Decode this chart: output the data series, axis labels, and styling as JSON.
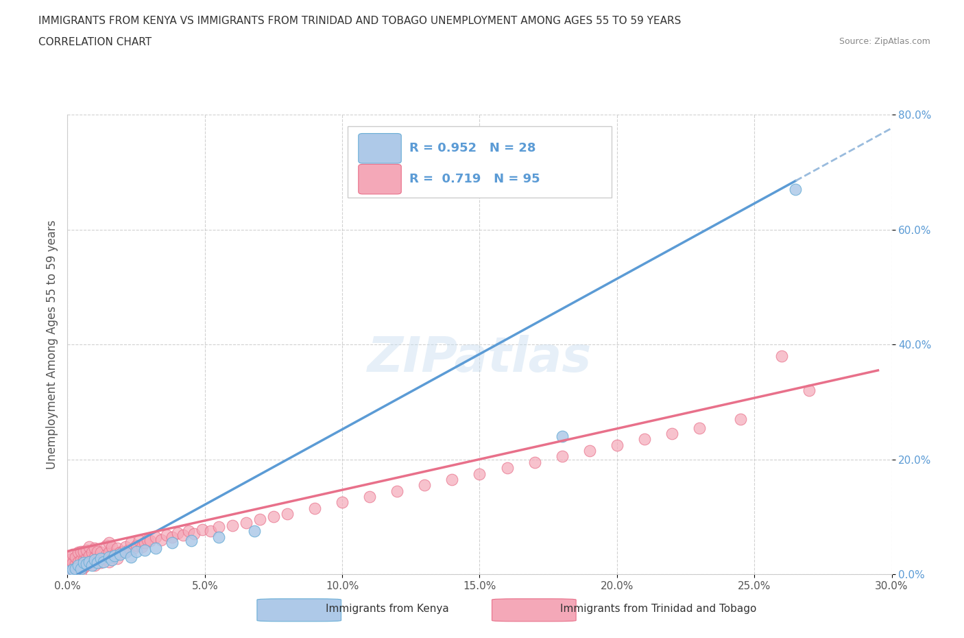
{
  "title_line1": "IMMIGRANTS FROM KENYA VS IMMIGRANTS FROM TRINIDAD AND TOBAGO UNEMPLOYMENT AMONG AGES 55 TO 59 YEARS",
  "title_line2": "CORRELATION CHART",
  "source_text": "Source: ZipAtlas.com",
  "ylabel": "Unemployment Among Ages 55 to 59 years",
  "xlim": [
    0.0,
    0.3
  ],
  "ylim": [
    0.0,
    0.8
  ],
  "xticks": [
    0.0,
    0.05,
    0.1,
    0.15,
    0.2,
    0.25,
    0.3
  ],
  "xticklabels": [
    "0.0%",
    "5.0%",
    "10.0%",
    "15.0%",
    "20.0%",
    "25.0%",
    "30.0%"
  ],
  "yticks": [
    0.0,
    0.2,
    0.4,
    0.6,
    0.8
  ],
  "yticklabels": [
    "0.0%",
    "20.0%",
    "40.0%",
    "60.0%",
    "80.0%"
  ],
  "kenya_color": "#aec9e8",
  "kenya_edge_color": "#6aaed6",
  "tt_color": "#f4a8b8",
  "tt_edge_color": "#e8708a",
  "kenya_line_color": "#5b9bd5",
  "tt_line_color": "#e8708a",
  "dashed_line_color": "#99bbdd",
  "background_color": "#ffffff",
  "R_kenya": 0.952,
  "N_kenya": 28,
  "R_tt": 0.719,
  "N_tt": 95,
  "kenya_line_x0": 0.0,
  "kenya_line_y0": -0.01,
  "kenya_line_x1": 0.265,
  "kenya_line_y1": 0.685,
  "kenya_line_solid_end": 0.265,
  "tt_line_x0": 0.0,
  "tt_line_y0": 0.04,
  "tt_line_x1": 0.295,
  "tt_line_y1": 0.355,
  "kenya_scatter_x": [
    0.0,
    0.002,
    0.003,
    0.004,
    0.005,
    0.006,
    0.007,
    0.008,
    0.009,
    0.01,
    0.011,
    0.012,
    0.013,
    0.015,
    0.016,
    0.017,
    0.019,
    0.021,
    0.023,
    0.025,
    0.028,
    0.032,
    0.038,
    0.045,
    0.055,
    0.068,
    0.18,
    0.265
  ],
  "kenya_scatter_y": [
    0.005,
    0.008,
    0.01,
    0.015,
    0.01,
    0.02,
    0.018,
    0.022,
    0.015,
    0.025,
    0.02,
    0.028,
    0.022,
    0.03,
    0.025,
    0.032,
    0.035,
    0.038,
    0.03,
    0.04,
    0.042,
    0.045,
    0.055,
    0.058,
    0.065,
    0.075,
    0.24,
    0.67
  ],
  "tt_scatter_x": [
    0.0,
    0.0,
    0.0,
    0.0,
    0.001,
    0.001,
    0.001,
    0.002,
    0.002,
    0.002,
    0.003,
    0.003,
    0.003,
    0.004,
    0.004,
    0.004,
    0.005,
    0.005,
    0.005,
    0.005,
    0.006,
    0.006,
    0.006,
    0.007,
    0.007,
    0.007,
    0.008,
    0.008,
    0.008,
    0.009,
    0.009,
    0.01,
    0.01,
    0.01,
    0.011,
    0.011,
    0.012,
    0.012,
    0.013,
    0.014,
    0.014,
    0.015,
    0.015,
    0.015,
    0.016,
    0.016,
    0.017,
    0.018,
    0.018,
    0.019,
    0.02,
    0.021,
    0.022,
    0.023,
    0.024,
    0.025,
    0.026,
    0.027,
    0.028,
    0.029,
    0.03,
    0.032,
    0.034,
    0.036,
    0.038,
    0.04,
    0.042,
    0.044,
    0.046,
    0.049,
    0.052,
    0.055,
    0.06,
    0.065,
    0.07,
    0.075,
    0.08,
    0.09,
    0.1,
    0.11,
    0.12,
    0.13,
    0.14,
    0.15,
    0.16,
    0.17,
    0.18,
    0.19,
    0.2,
    0.21,
    0.22,
    0.23,
    0.245,
    0.26,
    0.27
  ],
  "tt_scatter_y": [
    0.0,
    0.01,
    0.02,
    0.03,
    0.005,
    0.015,
    0.025,
    0.01,
    0.02,
    0.035,
    0.008,
    0.018,
    0.03,
    0.01,
    0.022,
    0.038,
    0.005,
    0.015,
    0.025,
    0.04,
    0.012,
    0.025,
    0.04,
    0.015,
    0.028,
    0.042,
    0.018,
    0.032,
    0.048,
    0.02,
    0.038,
    0.015,
    0.03,
    0.045,
    0.022,
    0.04,
    0.02,
    0.038,
    0.028,
    0.035,
    0.05,
    0.022,
    0.038,
    0.055,
    0.03,
    0.048,
    0.035,
    0.028,
    0.045,
    0.038,
    0.04,
    0.048,
    0.042,
    0.055,
    0.045,
    0.05,
    0.058,
    0.048,
    0.055,
    0.06,
    0.058,
    0.065,
    0.06,
    0.068,
    0.065,
    0.072,
    0.068,
    0.075,
    0.07,
    0.078,
    0.075,
    0.082,
    0.085,
    0.09,
    0.095,
    0.1,
    0.105,
    0.115,
    0.125,
    0.135,
    0.145,
    0.155,
    0.165,
    0.175,
    0.185,
    0.195,
    0.205,
    0.215,
    0.225,
    0.235,
    0.245,
    0.255,
    0.27,
    0.38,
    0.32
  ],
  "watermark_text": "ZIPatlas",
  "legend_label_kenya": "Immigrants from Kenya",
  "legend_label_tt": "Immigrants from Trinidad and Tobago",
  "marker_size": 12
}
